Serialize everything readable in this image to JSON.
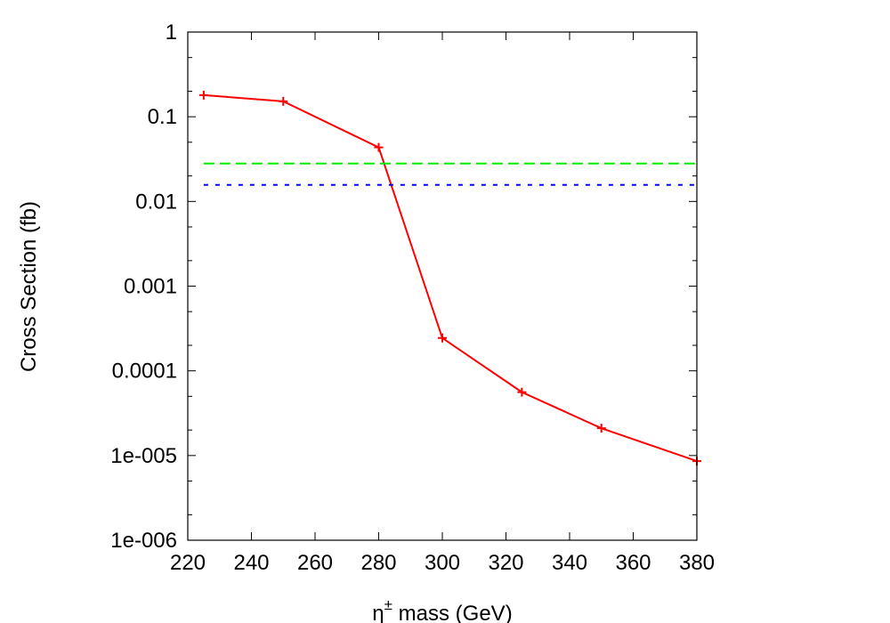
{
  "chart_data": {
    "type": "line",
    "title": "",
    "xlabel": "η± mass (GeV)",
    "xlabel_base": "η",
    "xlabel_sup": "±",
    "xlabel_rest": " mass (GeV)",
    "ylabel": "Cross Section (fb)",
    "xlim": [
      220,
      380
    ],
    "ylim": [
      1e-06,
      1
    ],
    "yscale": "log",
    "grid": false,
    "legend": "none",
    "xticks": [
      "220",
      "240",
      "260",
      "280",
      "300",
      "320",
      "340",
      "360",
      "380"
    ],
    "yticks": [
      "1e-006",
      "1e-005",
      "0.0001",
      "0.001",
      "0.01",
      "0.1",
      "1"
    ],
    "series": [
      {
        "color": "#ff0000",
        "style": "solid-with-plus-markers",
        "x": [
          225,
          250,
          280,
          300,
          325,
          350,
          380
        ],
        "y": [
          0.18,
          0.152,
          0.0435,
          0.000244,
          5.6e-05,
          2.1e-05,
          8.6e-06
        ]
      },
      {
        "color": "#00ee00",
        "style": "dashed",
        "x": [
          225,
          380
        ],
        "y": [
          0.028,
          0.028
        ]
      },
      {
        "color": "#0000ff",
        "style": "dotted",
        "x": [
          225,
          380
        ],
        "y": [
          0.0157,
          0.0157
        ]
      }
    ]
  }
}
